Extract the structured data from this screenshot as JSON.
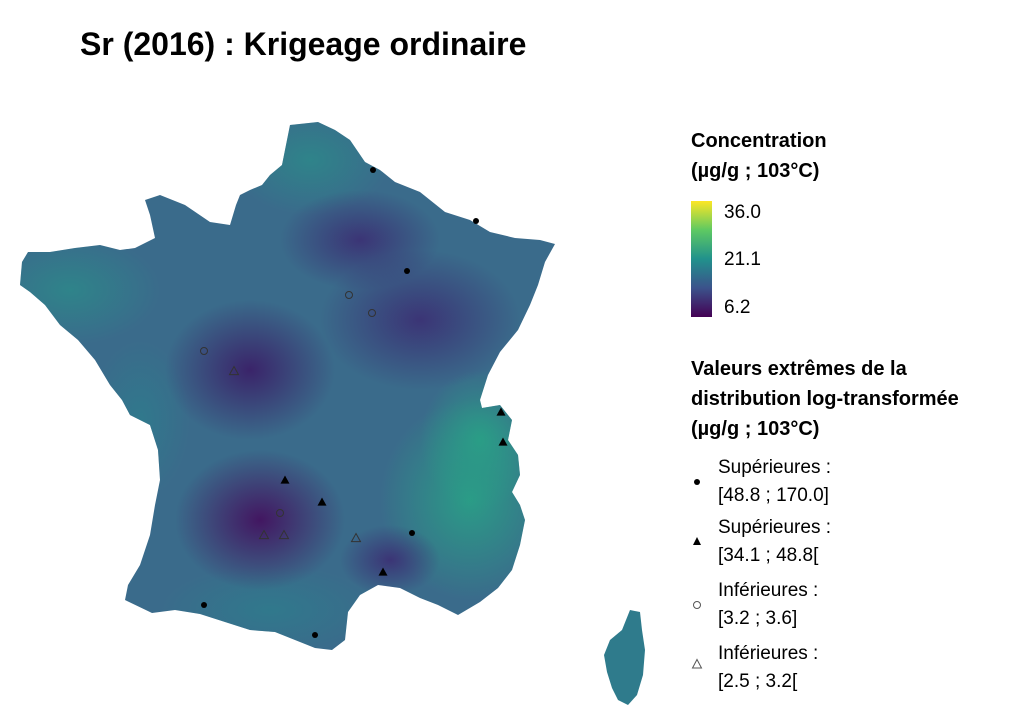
{
  "title": "Sr (2016) : Krigeage ordinaire",
  "legend": {
    "concentration": {
      "title_line1": "Concentration",
      "title_line2": "(µg/g ; 103°C)",
      "ticks": [
        "36.0",
        "21.1",
        "6.2"
      ],
      "min": 6.2,
      "max": 36.0,
      "colors": [
        "#440154",
        "#3b528b",
        "#21918c",
        "#5ec962",
        "#fde725"
      ]
    },
    "extremes": {
      "title_line1": "Valeurs extrêmes de la",
      "title_line2": "distribution log-transformée",
      "title_line3": "(µg/g ; 103°C)",
      "items": [
        {
          "symbol": "filled-circle",
          "line1": "Supérieures :",
          "line2": "[48.8 ; 170.0]"
        },
        {
          "symbol": "filled-triangle",
          "line1": "Supérieures :",
          "line2": "[34.1 ; 48.8["
        },
        {
          "symbol": "open-circle",
          "line1": "Inférieures :",
          "line2": "[3.2 ; 3.6]"
        },
        {
          "symbol": "open-triangle",
          "line1": "Inférieures :",
          "line2": "[2.5 ; 3.2["
        }
      ]
    }
  }
}
